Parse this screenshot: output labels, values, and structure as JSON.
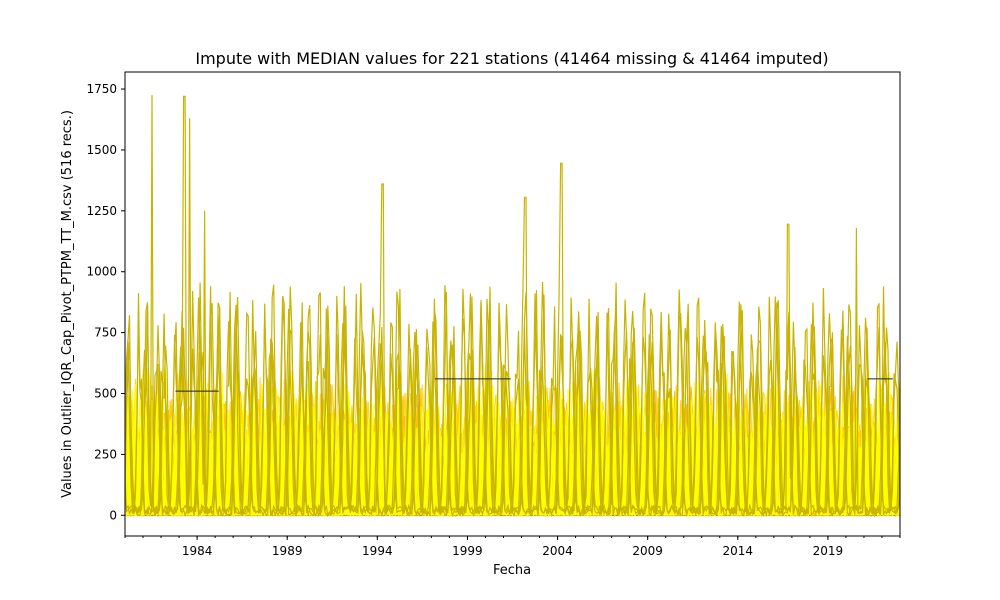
{
  "chart_data": {
    "type": "line",
    "title": "Impute with MEDIAN values for 221 stations (41464 missing & 41464 imputed)",
    "xlabel": "Fecha",
    "ylabel": "Values in Outlier_IQR_Cap_Pivot_PTPM_TT_M.csv (516 recs.)",
    "xlim": [
      1980.0,
      2023.0
    ],
    "ylim": [
      -85,
      1820
    ],
    "x_ticks": [
      {
        "value": 1984,
        "label": "1984"
      },
      {
        "value": 1989,
        "label": "1989"
      },
      {
        "value": 1994,
        "label": "1994"
      },
      {
        "value": 1999,
        "label": "1999"
      },
      {
        "value": 2004,
        "label": "2004"
      },
      {
        "value": 2009,
        "label": "2009"
      },
      {
        "value": 2014,
        "label": "2014"
      },
      {
        "value": 2019,
        "label": "2019"
      }
    ],
    "y_ticks": [
      {
        "value": 0,
        "label": "0"
      },
      {
        "value": 250,
        "label": "250"
      },
      {
        "value": 500,
        "label": "500"
      },
      {
        "value": 750,
        "label": "750"
      },
      {
        "value": 1000,
        "label": "1000"
      },
      {
        "value": 1250,
        "label": "1250"
      },
      {
        "value": 1500,
        "label": "1500"
      },
      {
        "value": 1750,
        "label": "1750"
      }
    ],
    "grid": false,
    "legend": "none",
    "series_count": 221,
    "colors": {
      "low": "#000000",
      "mid_red": "#cc2200",
      "mid_orange": "#ff8800",
      "high_yellow": "#ffff00",
      "olive": "#c8b400"
    },
    "notable_peaks": [
      {
        "x": 1981.5,
        "y": 1725
      },
      {
        "x": 1983.3,
        "y": 1720
      },
      {
        "x": 1983.6,
        "y": 1630
      },
      {
        "x": 1984.4,
        "y": 1250
      },
      {
        "x": 1994.3,
        "y": 1360
      },
      {
        "x": 2004.2,
        "y": 1445
      },
      {
        "x": 2002.2,
        "y": 1305
      },
      {
        "x": 2016.8,
        "y": 1195
      },
      {
        "x": 2020.6,
        "y": 1180
      }
    ],
    "imputed_median_levels": [
      {
        "x_start": 1982.8,
        "x_end": 1985.2,
        "y": 510
      },
      {
        "x_start": 1997.2,
        "x_end": 2001.4,
        "y": 560
      },
      {
        "x_start": 2021.2,
        "x_end": 2022.6,
        "y": 560
      }
    ]
  }
}
